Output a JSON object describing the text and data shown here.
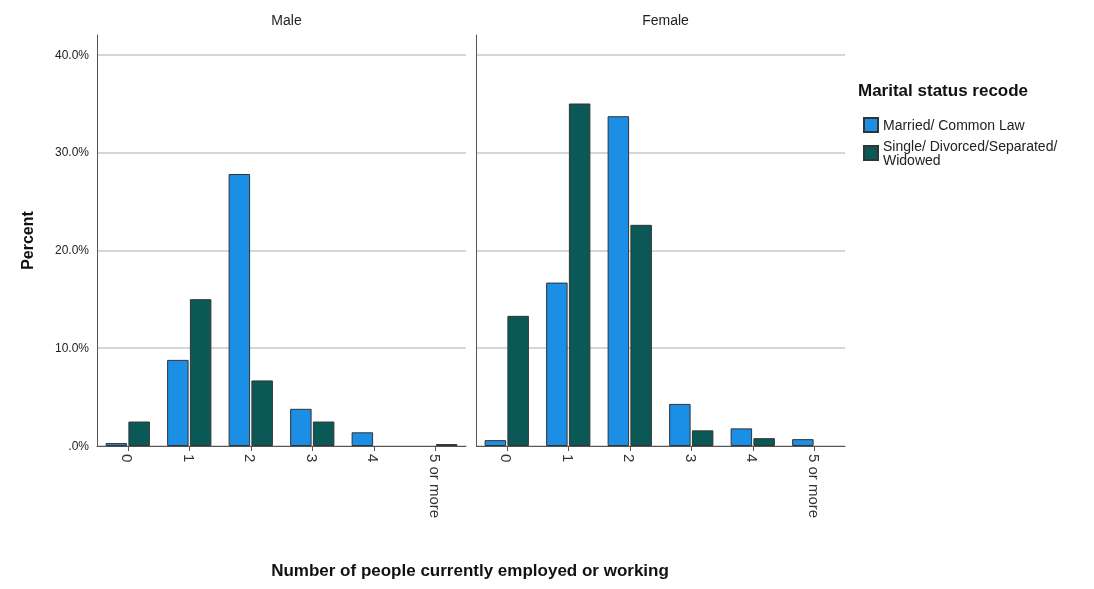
{
  "chart_data": [
    {
      "type": "bar",
      "title": "Male",
      "ylabel": "Percent",
      "xlabel": "Number of people currently employed or working",
      "categories": [
        "0",
        "1",
        "2",
        "3",
        "4",
        "5 or more"
      ],
      "series": [
        {
          "color": "#1b8ee6",
          "values": [
            0.3,
            8.8,
            27.8,
            3.8,
            1.4,
            null
          ]
        },
        {
          "color": "#0b5956",
          "values": [
            2.5,
            15.0,
            6.7,
            2.5,
            null,
            0.2
          ]
        }
      ],
      "ylim": [
        0,
        42
      ],
      "yticks": [
        {
          "value": 0,
          "label": ".0%"
        },
        {
          "value": 10,
          "label": "10.0%"
        },
        {
          "value": 20,
          "label": "20.0%"
        },
        {
          "value": 30,
          "label": "30.0%"
        },
        {
          "value": 40,
          "label": "40.0%"
        }
      ],
      "grid": "y",
      "legend": false
    },
    {
      "type": "bar",
      "title": "Female",
      "legend_title": "Marital status recode",
      "categories": [
        "0",
        "1",
        "2",
        "3",
        "4",
        "5 or more"
      ],
      "series": [
        {
          "name": "Married/ Common Law",
          "color": "#1b8ee6",
          "values": [
            0.6,
            16.7,
            33.7,
            4.3,
            1.8,
            0.7
          ]
        },
        {
          "name": "Single/ Divorced/Separated/ Widowed",
          "color": "#0b5956",
          "values": [
            13.3,
            35.0,
            22.6,
            1.6,
            0.8,
            null
          ]
        }
      ],
      "ylim": [
        0,
        42
      ],
      "yticks": [
        0,
        10,
        20,
        30,
        40
      ],
      "grid": "y",
      "legend": "right",
      "tick_labels": "x"
    }
  ]
}
